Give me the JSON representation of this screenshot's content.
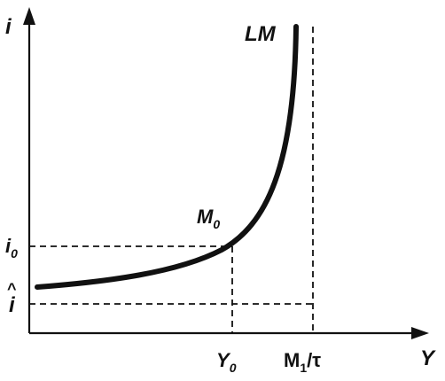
{
  "axes": {
    "y_label": "i",
    "x_label": "Y"
  },
  "curve_label": "LM",
  "point_label": {
    "base": "M",
    "sub": "0"
  },
  "y_ticks": {
    "i0": {
      "base": "i",
      "sub": "0"
    },
    "i_hat": {
      "base": "i",
      "accent": "^"
    }
  },
  "x_ticks": {
    "y0": {
      "base": "Y",
      "sub": "0"
    },
    "m1_tau": {
      "base": "M",
      "sub": "1",
      "rest": "/τ"
    }
  }
}
